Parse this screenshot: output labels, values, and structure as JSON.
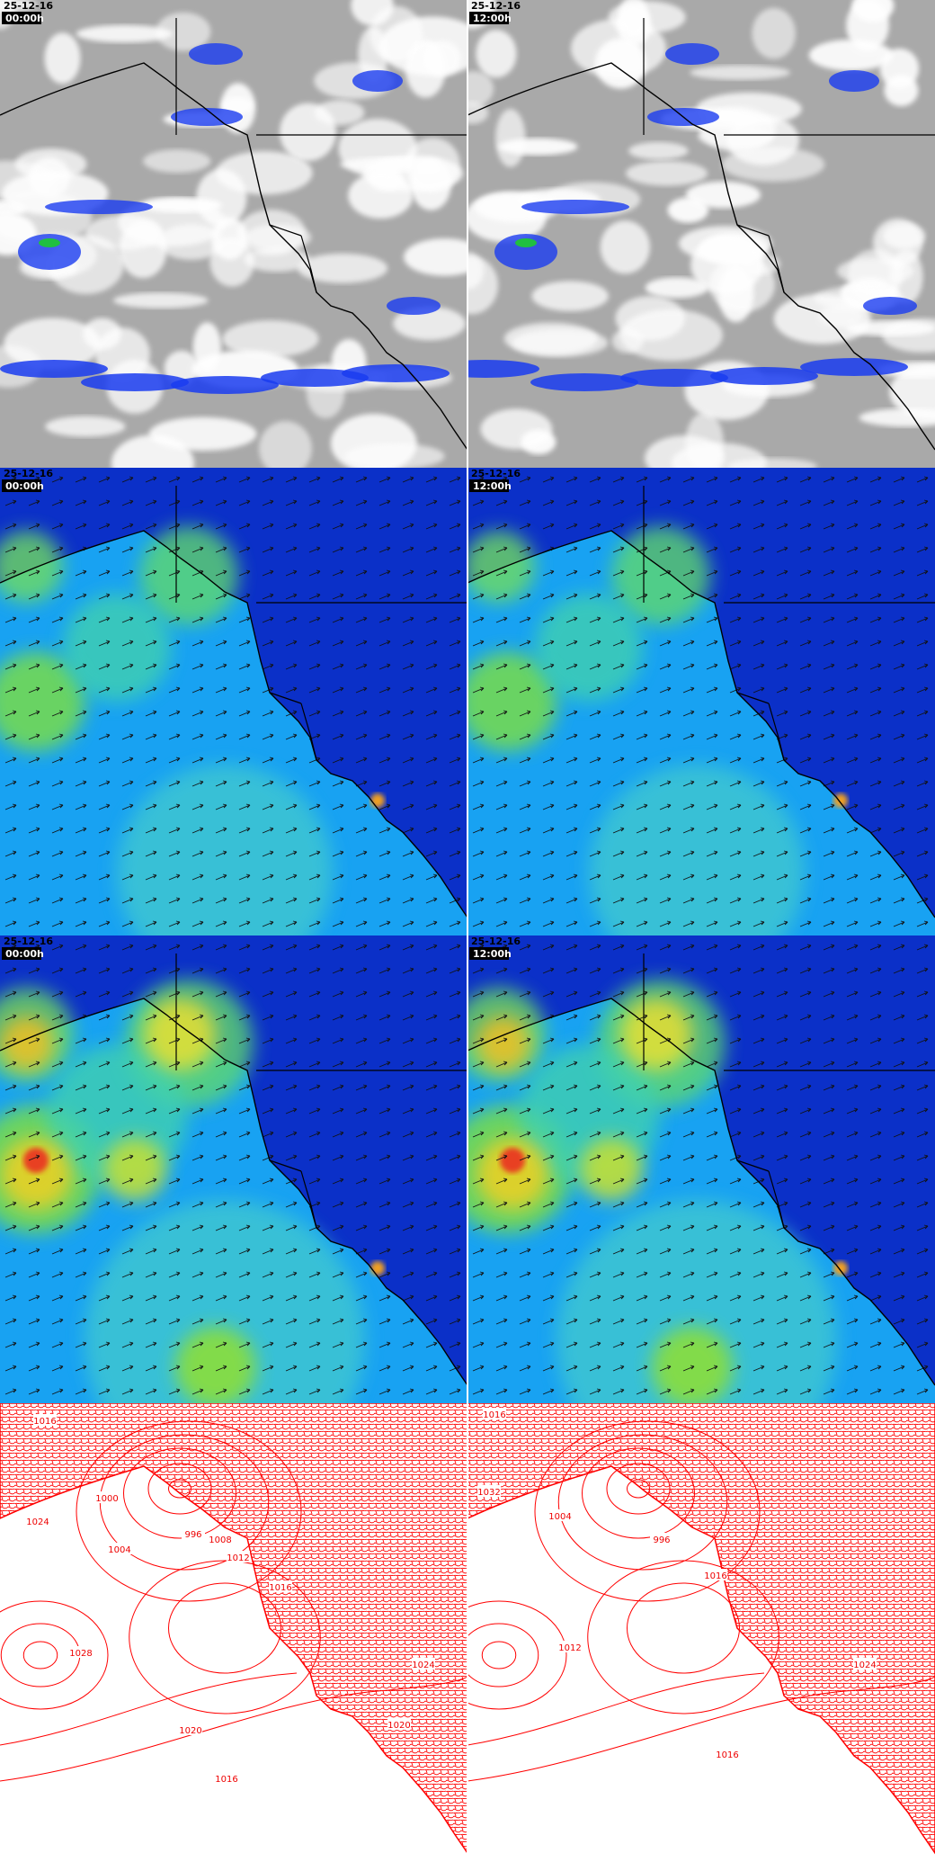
{
  "panels": [
    {
      "date": "25-12-16",
      "time": "00:00h"
    },
    {
      "date": "25-12-16",
      "time": "12:00h"
    },
    {
      "date": "25-12-16",
      "time": "00:00h"
    },
    {
      "date": "25-12-16",
      "time": "12:00h"
    },
    {
      "date": "25-12-16",
      "time": "00:00h"
    },
    {
      "date": "25-12-16",
      "time": "12:00h"
    }
  ],
  "isobar_labels": {
    "left": [
      "1016",
      "1024",
      "1000",
      "996",
      "1004",
      "1008",
      "1012",
      "1016",
      "1028",
      "1020",
      "1024",
      "1020",
      "1016"
    ],
    "right": [
      "1016",
      "1032",
      "1004",
      "996",
      "1016",
      "1012",
      "1024",
      "1016"
    ]
  }
}
